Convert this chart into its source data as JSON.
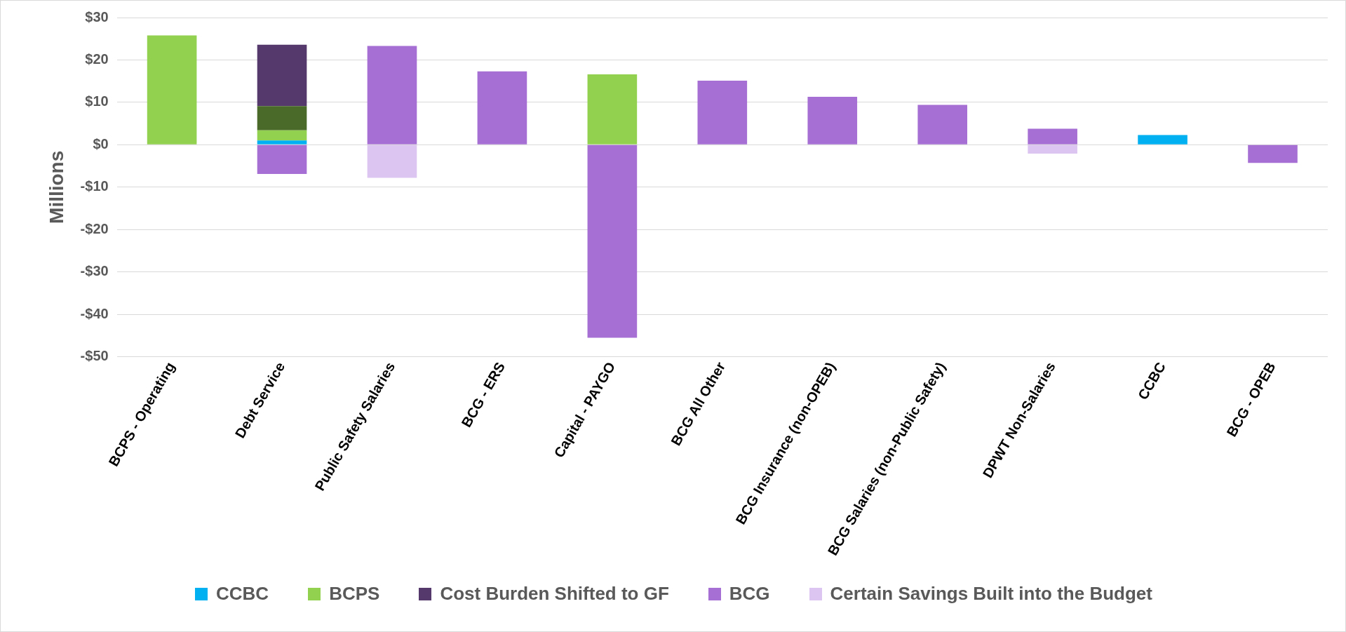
{
  "chart_data": {
    "type": "bar",
    "stacked": true,
    "ylabel": "Millions",
    "categories": [
      "BCPS - Operating",
      "Debt Service",
      "Public Safety Salaries",
      "BCG - ERS",
      "Capital - PAYGO",
      "BCG All Other",
      "BCG Insurance (non-OPEB)",
      "BCG Salaries (non-Public Safety)",
      "DPWT Non-Salaries",
      "CCBC",
      "BCG - OPEB"
    ],
    "series": [
      {
        "name": "CCBC",
        "color": "#00b0f0",
        "values": [
          null,
          1.0,
          null,
          null,
          null,
          null,
          null,
          null,
          null,
          2.3,
          null
        ]
      },
      {
        "name": "BCPS",
        "color": "#92d050",
        "values": [
          25.8,
          2.4,
          null,
          null,
          16.6,
          null,
          null,
          null,
          null,
          null,
          null
        ]
      },
      {
        "color": "#4a6a2a",
        "values": [
          null,
          5.7,
          null,
          null,
          null,
          null,
          null,
          null,
          null,
          null,
          null
        ]
      },
      {
        "name": "Cost Burden Shifted to GF",
        "color": "#55386c",
        "values": [
          null,
          14.5,
          null,
          null,
          null,
          null,
          null,
          null,
          null,
          null,
          null
        ]
      },
      {
        "name": "BCG",
        "color": "#a66fd3",
        "values": [
          null,
          -6.9,
          23.3,
          17.3,
          -45.5,
          15.1,
          11.3,
          9.4,
          3.8,
          null,
          -4.3
        ]
      },
      {
        "name": "Certain Savings Built into the Budget",
        "color": "#dcc5f0",
        "values": [
          null,
          null,
          -7.8,
          null,
          null,
          null,
          null,
          null,
          -2.1,
          null,
          null
        ]
      }
    ],
    "ylim": [
      -50,
      30
    ],
    "yticks": [
      {
        "value": 30,
        "label": "$30"
      },
      {
        "value": 20,
        "label": "$20"
      },
      {
        "value": 10,
        "label": "$10"
      },
      {
        "value": 0,
        "label": "$0"
      },
      {
        "value": -10,
        "label": "-$10"
      },
      {
        "value": -20,
        "label": "-$20"
      },
      {
        "value": -30,
        "label": "-$30"
      },
      {
        "value": -40,
        "label": "-$40"
      },
      {
        "value": -50,
        "label": "-$50"
      }
    ],
    "grid": "y",
    "legend": "bottom"
  }
}
